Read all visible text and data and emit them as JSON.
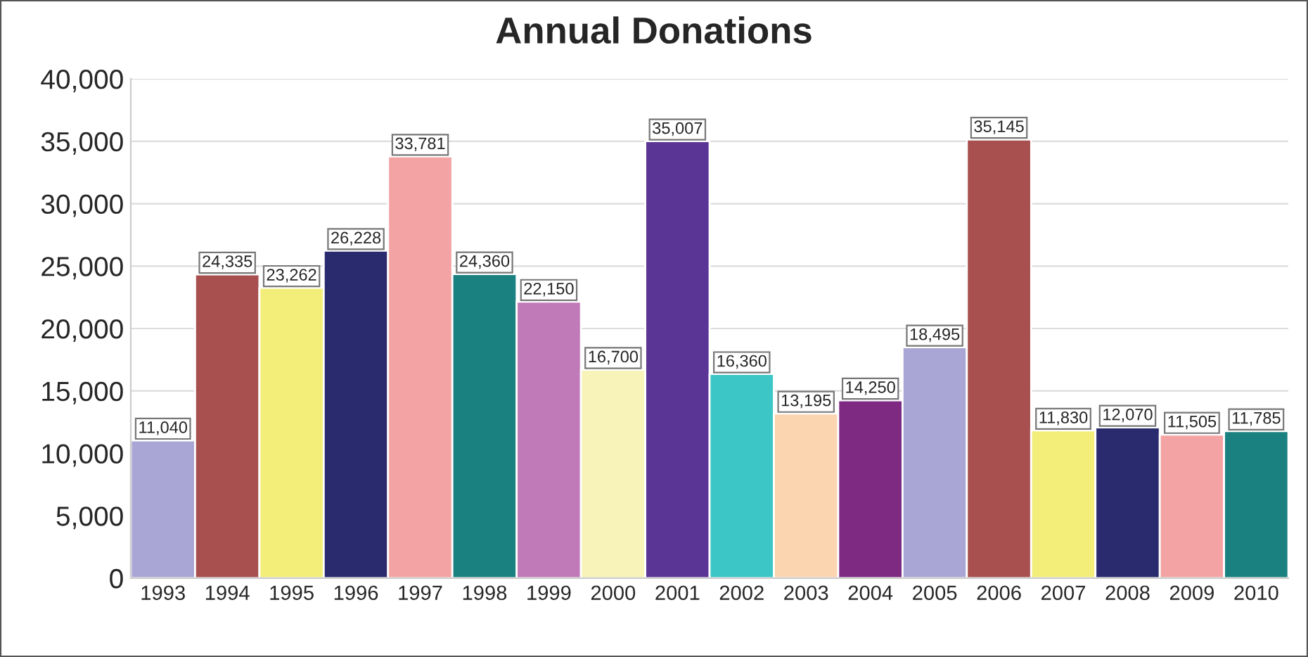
{
  "chart_data": {
    "type": "bar",
    "title": "Annual Donations",
    "categories": [
      "1993",
      "1994",
      "1995",
      "1996",
      "1997",
      "1998",
      "1999",
      "2000",
      "2001",
      "2002",
      "2003",
      "2004",
      "2005",
      "2006",
      "2007",
      "2008",
      "2009",
      "2010"
    ],
    "values": [
      11040,
      24335,
      23262,
      26228,
      33781,
      24360,
      22150,
      16700,
      35007,
      16360,
      13195,
      14250,
      18495,
      35145,
      11830,
      12070,
      11505,
      11785
    ],
    "value_labels": [
      "11,040",
      "24,335",
      "23,262",
      "26,228",
      "33,781",
      "24,360",
      "22,150",
      "16,700",
      "35,007",
      "16,360",
      "13,195",
      "14,250",
      "18,495",
      "35,145",
      "11,830",
      "12,070",
      "11,505",
      "11,785"
    ],
    "colors": [
      "#a9a6d6",
      "#a84f4f",
      "#f3ee7a",
      "#2a2a6e",
      "#f3a3a3",
      "#1a8080",
      "#c07ab8",
      "#f8f3b8",
      "#5a3596",
      "#3cc6c6",
      "#fbd4b0",
      "#7e2a82",
      "#a9a6d6",
      "#a84f4f",
      "#f3ee7a",
      "#2a2a6e",
      "#f3a3a3",
      "#1a8080"
    ],
    "ylim": [
      0,
      40000
    ],
    "yticks": [
      0,
      {
        "value": 5000,
        "label": "5,000"
      },
      {
        "value": 10000,
        "label": "10,000"
      },
      {
        "value": 15000,
        "label": "15,000"
      },
      {
        "value": 20000,
        "label": "20,000"
      },
      {
        "value": 25000,
        "label": "25,000"
      },
      {
        "value": 30000,
        "label": "30,000"
      },
      {
        "value": 35000,
        "label": "35,000"
      },
      {
        "value": 40000,
        "label": "40,000"
      }
    ],
    "grid": "y",
    "legend": false
  }
}
